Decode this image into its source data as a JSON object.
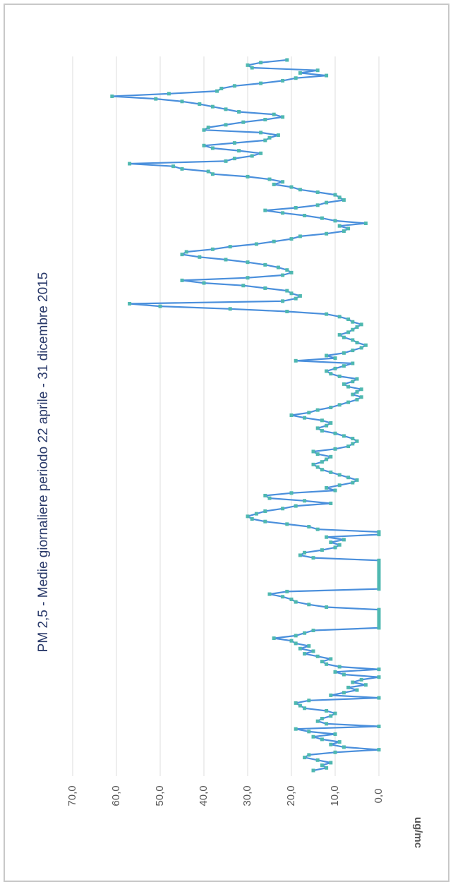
{
  "chart_data": {
    "type": "line",
    "title": "PM 2,5 - Medie giornaliere periodo 22 aprile - 31 dicembre 2015",
    "y_label": "ug/mc",
    "ylim": [
      0,
      70
    ],
    "yticks": [
      {
        "value": 0,
        "label": "0,0"
      },
      {
        "value": 10,
        "label": "10,0"
      },
      {
        "value": 20,
        "label": "20,0"
      },
      {
        "value": 30,
        "label": "30,0"
      },
      {
        "value": 40,
        "label": "40,0"
      },
      {
        "value": 50,
        "label": "50,0"
      },
      {
        "value": 60,
        "label": "60,0"
      },
      {
        "value": 70,
        "label": "70,0"
      }
    ],
    "grid": true,
    "color": "#4a8fdc",
    "marker_color": "#4fb8b0",
    "values": [
      15,
      12,
      13,
      11,
      14,
      17,
      16,
      10,
      0,
      8,
      11,
      9,
      13,
      15,
      10,
      16,
      19,
      0,
      12,
      14,
      13,
      11,
      10,
      12,
      17,
      18,
      19,
      16,
      0,
      11,
      8,
      5,
      7,
      3,
      6,
      4,
      0,
      8,
      10,
      0,
      9,
      12,
      13,
      11,
      14,
      17,
      15,
      18,
      16,
      19,
      20,
      24,
      19,
      17,
      15,
      0,
      0,
      0,
      0,
      0,
      0,
      0,
      0,
      12,
      16,
      19,
      20,
      22,
      25,
      21,
      0,
      0,
      0,
      0,
      0,
      0,
      0,
      0,
      0,
      0,
      0,
      0,
      15,
      18,
      17,
      13,
      10,
      9,
      11,
      8,
      12,
      0,
      0,
      14,
      16,
      21,
      26,
      29,
      30,
      28,
      26,
      22,
      19,
      11,
      17,
      25,
      26,
      20,
      10,
      12,
      9,
      6,
      5,
      7,
      9,
      11,
      13,
      14,
      15,
      13,
      12,
      11,
      14,
      15,
      10,
      7,
      6,
      5,
      6,
      8,
      10,
      13,
      14,
      12,
      11,
      13,
      17,
      20,
      16,
      14,
      11,
      9,
      7,
      5,
      4,
      6,
      5,
      4,
      7,
      8,
      6,
      5,
      9,
      11,
      12,
      10,
      8,
      6,
      19,
      10,
      12,
      8,
      6,
      4,
      3,
      5,
      6,
      8,
      9,
      7,
      6,
      5,
      4,
      6,
      7,
      9,
      12,
      21,
      34,
      50,
      57,
      22,
      19,
      18,
      20,
      21,
      26,
      31,
      40,
      45,
      30,
      22,
      20,
      21,
      23,
      26,
      30,
      35,
      41,
      45,
      44,
      38,
      34,
      28,
      24,
      20,
      18,
      12,
      8,
      7,
      9,
      3,
      10,
      13,
      17,
      22,
      26,
      19,
      14,
      12,
      8,
      9,
      10,
      14,
      18,
      20,
      24,
      22,
      25,
      30,
      38,
      39,
      45,
      47,
      57,
      35,
      33,
      29,
      27,
      32,
      38,
      40,
      33,
      26,
      25,
      23,
      27,
      40,
      39,
      35,
      31,
      26,
      22,
      24,
      32,
      35,
      38,
      41,
      45,
      51,
      61,
      48,
      37,
      36,
      33,
      27,
      22,
      19,
      12,
      18,
      14,
      29,
      30,
      27,
      21
    ]
  }
}
